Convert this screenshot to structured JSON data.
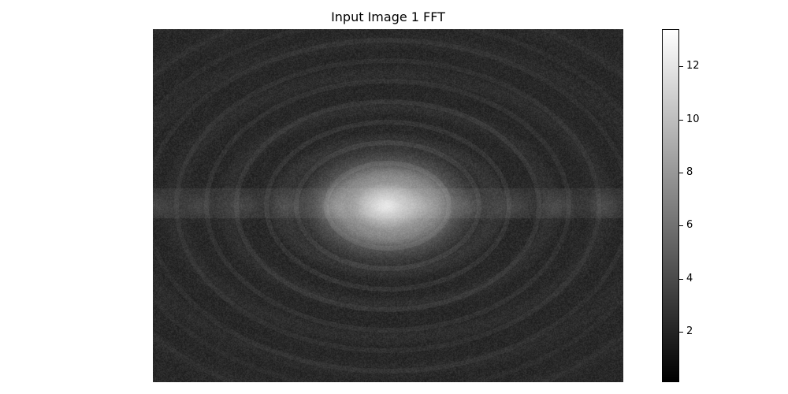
{
  "chart_data": {
    "type": "heatmap",
    "title": "Input Image 1 FFT",
    "xlabel": "",
    "ylabel": "",
    "colormap": "gray",
    "grid": false,
    "legend": "none",
    "colorbar": {
      "range": [
        0.1,
        13.4
      ],
      "ticks": [
        2,
        4,
        6,
        8,
        10,
        12
      ],
      "tick_labels": [
        "2",
        "4",
        "6",
        "8",
        "10",
        "12"
      ],
      "placement": "right"
    },
    "pattern": {
      "center_value": 9.0,
      "background_value": 2.2,
      "ring_value": 3.6,
      "horizontal_band_value": 4.0
    }
  }
}
